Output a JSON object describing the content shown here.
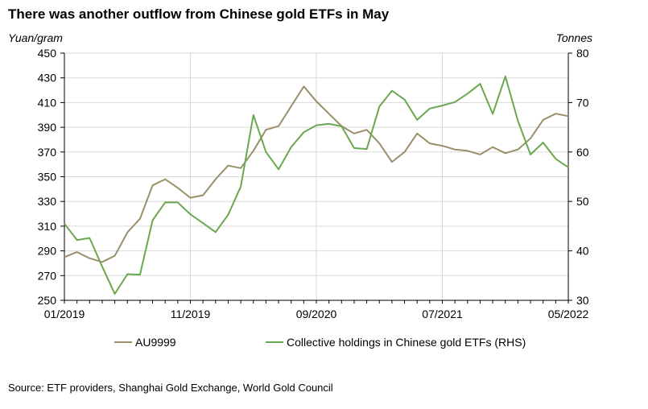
{
  "title": "There was another outflow from Chinese gold ETFs in May",
  "source": "Source: ETF providers, Shanghai Gold Exchange, World Gold Council",
  "chart_data": {
    "type": "line",
    "title": "There was another outflow from Chinese gold ETFs in May",
    "ylabel_left": "Yuan/gram",
    "ylabel_right": "Tonnes",
    "ylim_left": [
      250,
      450
    ],
    "ylim_right": [
      30,
      80
    ],
    "yticks_left": [
      250,
      270,
      290,
      310,
      330,
      350,
      370,
      390,
      410,
      430,
      450
    ],
    "yticks_right": [
      30,
      40,
      50,
      60,
      70,
      80
    ],
    "xtick_labels": [
      "01/2019",
      "11/2019",
      "09/2020",
      "07/2021",
      "05/2022"
    ],
    "xtick_indices": [
      0,
      10,
      20,
      30,
      40
    ],
    "grid": true,
    "legend_placement": "bottom",
    "colors": {
      "au9999": "#9b8f6a",
      "etf": "#6aa84f",
      "axis": "#000000",
      "grid": "#d9d9d9"
    },
    "series": [
      {
        "name": "AU9999",
        "axis": "left",
        "values": [
          285,
          289,
          284,
          281,
          286,
          305,
          316,
          343,
          348,
          341,
          333,
          335,
          348,
          359,
          357,
          371,
          388,
          391,
          407,
          423,
          411,
          401,
          391,
          385,
          388,
          377,
          362,
          370,
          385,
          377,
          375,
          372,
          371,
          368,
          374,
          369,
          372,
          381,
          396,
          401,
          399
        ]
      },
      {
        "name": "Collective holdings in Chinese gold ETFs (RHS)",
        "axis": "right",
        "values": [
          45.5,
          42.2,
          42.6,
          36.8,
          31.3,
          35.3,
          35.2,
          46.2,
          49.8,
          49.8,
          47.4,
          45.6,
          43.8,
          47.3,
          53.0,
          67.5,
          60.0,
          56.5,
          61.0,
          64.0,
          65.4,
          65.7,
          65.2,
          60.8,
          60.6,
          69.2,
          72.4,
          70.6,
          66.5,
          68.8,
          69.4,
          70.1,
          71.8,
          73.8,
          67.7,
          75.3,
          66.3,
          59.5,
          61.9,
          58.6,
          56.9
        ]
      }
    ]
  }
}
